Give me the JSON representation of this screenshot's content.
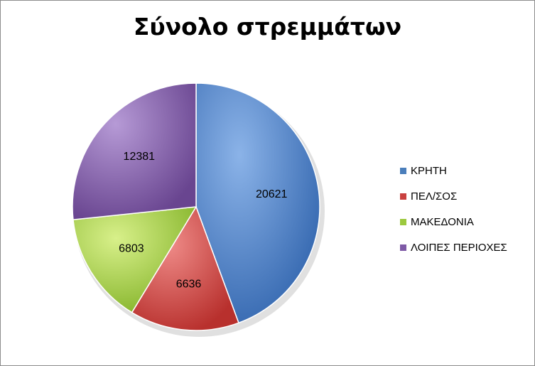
{
  "chart_data": {
    "type": "pie",
    "title": "Σύνολο στρεμμάτων",
    "categories": [
      "ΚΡΗΤΗ",
      "ΠΕΛ/ΣΟΣ",
      "ΜΑΚΕΔΟΝΙΑ",
      "ΛΟΙΠΕΣ ΠΕΡΙΟΧΕΣ"
    ],
    "values": [
      20621,
      6636,
      6803,
      12381
    ],
    "value_labels": [
      "20621",
      "6636",
      "6803",
      "12381"
    ],
    "colors": [
      "#4a7ebb",
      "#c9413f",
      "#9cc93f",
      "#7e5aa6"
    ],
    "legend_position": "right"
  }
}
